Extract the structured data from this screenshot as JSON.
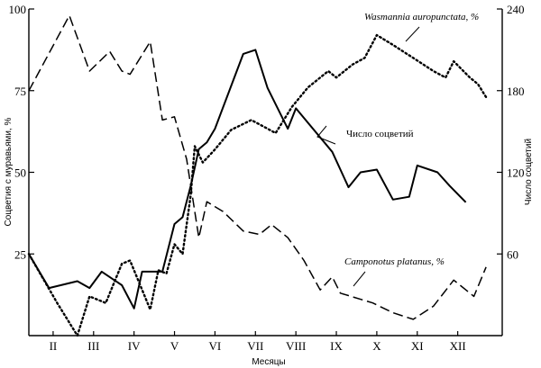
{
  "chart_data": {
    "type": "line",
    "xlabel": "Месяцы",
    "ylabel_left": "Соцветия с муравьями, %",
    "ylabel_right": "Число соцветий",
    "ylim_left": [
      0,
      100
    ],
    "ylim_right": [
      0,
      240
    ],
    "yticks_left": [
      25,
      50,
      75,
      100
    ],
    "yticks_right": [
      60,
      120,
      180,
      240
    ],
    "xlim": [
      1.0,
      12.7
    ],
    "month_ticks": [
      {
        "label": "II",
        "x": 1.6
      },
      {
        "label": "III",
        "x": 2.6
      },
      {
        "label": "IV",
        "x": 3.6
      },
      {
        "label": "V",
        "x": 4.6
      },
      {
        "label": "VI",
        "x": 5.6
      },
      {
        "label": "VII",
        "x": 6.6
      },
      {
        "label": "VIII",
        "x": 7.6
      },
      {
        "label": "IX",
        "x": 8.6
      },
      {
        "label": "X",
        "x": 9.6
      },
      {
        "label": "XI",
        "x": 10.6
      },
      {
        "label": "XII",
        "x": 11.6
      }
    ],
    "series": [
      {
        "name": "Wasmannia auropunctata, %",
        "axis": "left",
        "style": "dotted",
        "points": [
          [
            1.0,
            25
          ],
          [
            1.7,
            10
          ],
          [
            2.2,
            0
          ],
          [
            2.5,
            12
          ],
          [
            2.9,
            10
          ],
          [
            3.3,
            22
          ],
          [
            3.5,
            23
          ],
          [
            4.0,
            8
          ],
          [
            4.2,
            20
          ],
          [
            4.4,
            19
          ],
          [
            4.6,
            28
          ],
          [
            4.8,
            25
          ],
          [
            5.0,
            43
          ],
          [
            5.1,
            58
          ],
          [
            5.3,
            53
          ],
          [
            5.6,
            57
          ],
          [
            6.0,
            63
          ],
          [
            6.5,
            66
          ],
          [
            7.1,
            62
          ],
          [
            7.5,
            70
          ],
          [
            7.9,
            76
          ],
          [
            8.4,
            81
          ],
          [
            8.6,
            79
          ],
          [
            9.0,
            83
          ],
          [
            9.3,
            85
          ],
          [
            9.6,
            92
          ],
          [
            10.0,
            89
          ],
          [
            10.5,
            85
          ],
          [
            11.0,
            81
          ],
          [
            11.3,
            79
          ],
          [
            11.5,
            84
          ],
          [
            11.9,
            79
          ],
          [
            12.1,
            77
          ],
          [
            12.3,
            73
          ]
        ]
      },
      {
        "name": "Число соцветий",
        "axis": "right",
        "style": "solid",
        "points": [
          [
            1.0,
            60
          ],
          [
            1.5,
            35
          ],
          [
            2.2,
            40
          ],
          [
            2.5,
            35
          ],
          [
            2.8,
            47
          ],
          [
            3.3,
            37
          ],
          [
            3.6,
            20
          ],
          [
            3.8,
            47
          ],
          [
            4.3,
            47
          ],
          [
            4.6,
            82
          ],
          [
            4.8,
            87
          ],
          [
            5.0,
            110
          ],
          [
            5.2,
            137
          ],
          [
            5.4,
            142
          ],
          [
            5.6,
            152
          ],
          [
            6.3,
            207
          ],
          [
            6.6,
            210
          ],
          [
            6.9,
            182
          ],
          [
            7.4,
            152
          ],
          [
            7.6,
            167
          ],
          [
            8.5,
            135
          ],
          [
            8.9,
            109
          ],
          [
            9.2,
            120
          ],
          [
            9.6,
            122
          ],
          [
            10.0,
            100
          ],
          [
            10.4,
            102
          ],
          [
            10.6,
            125
          ],
          [
            11.1,
            120
          ],
          [
            11.4,
            110
          ],
          [
            11.8,
            98
          ]
        ]
      },
      {
        "name": "Camponotus platanus, %",
        "axis": "left",
        "style": "dashed",
        "points": [
          [
            1.0,
            75
          ],
          [
            2.0,
            98
          ],
          [
            2.5,
            81
          ],
          [
            3.0,
            87
          ],
          [
            3.3,
            81
          ],
          [
            3.5,
            80
          ],
          [
            4.0,
            90
          ],
          [
            4.3,
            66
          ],
          [
            4.6,
            67
          ],
          [
            4.9,
            54
          ],
          [
            5.2,
            30
          ],
          [
            5.4,
            41
          ],
          [
            5.8,
            38
          ],
          [
            6.3,
            32
          ],
          [
            6.7,
            31
          ],
          [
            7.0,
            34
          ],
          [
            7.4,
            30
          ],
          [
            7.8,
            23
          ],
          [
            8.2,
            14
          ],
          [
            8.5,
            18
          ],
          [
            8.7,
            13
          ],
          [
            9.5,
            10
          ],
          [
            10.0,
            7
          ],
          [
            10.5,
            5
          ],
          [
            11.0,
            9
          ],
          [
            11.5,
            17
          ],
          [
            12.0,
            12
          ],
          [
            12.3,
            21
          ]
        ]
      }
    ]
  }
}
